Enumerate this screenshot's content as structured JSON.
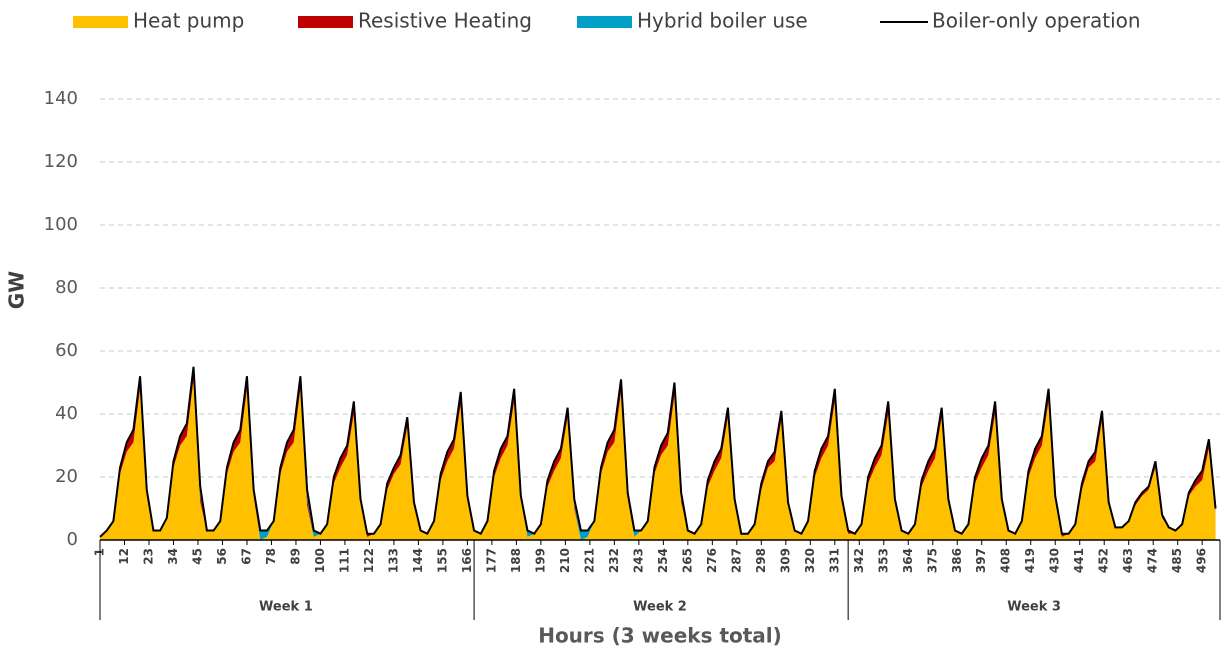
{
  "chart_data": {
    "type": "area",
    "stacked": true,
    "y_label": "GW",
    "x_label": "Hours (3 weeks total)",
    "xlim": [
      1,
      504
    ],
    "ylim": [
      0,
      140
    ],
    "yticks": [
      0,
      20,
      40,
      60,
      80,
      100,
      120,
      140
    ],
    "xticks": [
      1,
      12,
      23,
      34,
      45,
      56,
      67,
      78,
      89,
      100,
      111,
      122,
      133,
      144,
      155,
      166,
      177,
      188,
      199,
      210,
      221,
      232,
      243,
      254,
      265,
      276,
      287,
      298,
      309,
      320,
      331,
      342,
      353,
      364,
      375,
      386,
      397,
      408,
      419,
      430,
      441,
      452,
      463,
      474,
      485,
      496
    ],
    "grid": true,
    "legend": "top",
    "groups": [
      {
        "label": "Week 1",
        "range": [
          1,
          168
        ]
      },
      {
        "label": "Week 2",
        "range": [
          169,
          336
        ]
      },
      {
        "label": "Week 3",
        "range": [
          337,
          504
        ]
      }
    ],
    "x": [
      1,
      4,
      7,
      10,
      13,
      16,
      19,
      22,
      25,
      28,
      31,
      34,
      37,
      40,
      43,
      46,
      49,
      52,
      55,
      58,
      61,
      64,
      67,
      70,
      73,
      76,
      79,
      82,
      85,
      88,
      91,
      94,
      97,
      100,
      103,
      106,
      109,
      112,
      115,
      118,
      121,
      124,
      127,
      130,
      133,
      136,
      139,
      142,
      145,
      148,
      151,
      154,
      157,
      160,
      163,
      166,
      169,
      172,
      175,
      178,
      181,
      184,
      187,
      190,
      193,
      196,
      199,
      202,
      205,
      208,
      211,
      214,
      217,
      220,
      223,
      226,
      229,
      232,
      235,
      238,
      241,
      244,
      247,
      250,
      253,
      256,
      259,
      262,
      265,
      268,
      271,
      274,
      277,
      280,
      283,
      286,
      289,
      292,
      295,
      298,
      301,
      304,
      307,
      310,
      313,
      316,
      319,
      322,
      325,
      328,
      331,
      334,
      337,
      340,
      343,
      346,
      349,
      352,
      355,
      358,
      361,
      364,
      367,
      370,
      373,
      376,
      379,
      382,
      385,
      388,
      391,
      394,
      397,
      400,
      403,
      406,
      409,
      412,
      415,
      418,
      421,
      424,
      427,
      430,
      433,
      436,
      439,
      442,
      445,
      448,
      451,
      454,
      457,
      460,
      463,
      466,
      469,
      472,
      475,
      478,
      481,
      484,
      487,
      490,
      493,
      496,
      499,
      502
    ],
    "series": [
      {
        "name": "Heat pump",
        "color": "#ffc000",
        "mark": "area",
        "values": [
          1,
          3,
          6,
          21,
          28,
          31,
          48,
          14,
          3,
          3,
          7,
          23,
          30,
          33,
          51,
          12,
          3,
          3,
          6,
          21,
          28,
          31,
          48,
          14,
          0,
          1,
          6,
          21,
          28,
          31,
          48,
          11,
          1,
          2,
          5,
          18,
          23,
          27,
          40,
          12,
          1,
          2,
          5,
          16,
          21,
          24,
          36,
          11,
          3,
          2,
          6,
          19,
          25,
          29,
          43,
          13,
          3,
          2,
          6,
          20,
          26,
          30,
          44,
          13,
          1,
          2,
          5,
          17,
          22,
          26,
          39,
          10,
          0,
          1,
          6,
          21,
          28,
          31,
          47,
          13,
          1,
          3,
          6,
          21,
          27,
          30,
          46,
          12,
          3,
          2,
          5,
          17,
          22,
          26,
          39,
          12,
          2,
          2,
          5,
          16,
          23,
          25,
          38,
          11,
          3,
          2,
          6,
          20,
          26,
          30,
          44,
          13,
          2,
          2,
          5,
          18,
          23,
          27,
          40,
          12,
          3,
          2,
          5,
          17,
          22,
          26,
          39,
          12,
          3,
          2,
          5,
          18,
          23,
          27,
          40,
          12,
          3,
          2,
          6,
          20,
          26,
          30,
          44,
          13,
          1,
          2,
          5,
          16,
          23,
          25,
          38,
          11,
          4,
          4,
          6,
          11,
          14,
          16,
          23,
          7,
          4,
          3,
          5,
          14,
          17,
          19,
          29,
          9
        ]
      },
      {
        "name": "Resistive Heating",
        "color": "#c00000",
        "mark": "area",
        "values": [
          0,
          0,
          0,
          2,
          3,
          4,
          4,
          2,
          0,
          0,
          0,
          2,
          3,
          4,
          4,
          2,
          0,
          0,
          0,
          2,
          3,
          4,
          4,
          2,
          0,
          0,
          0,
          2,
          3,
          4,
          4,
          2,
          0,
          0,
          0,
          2,
          3,
          3,
          4,
          1,
          1,
          0,
          0,
          2,
          2,
          3,
          3,
          1,
          0,
          0,
          0,
          2,
          3,
          3,
          4,
          1,
          0,
          0,
          0,
          2,
          3,
          3,
          4,
          1,
          0,
          0,
          0,
          2,
          3,
          3,
          3,
          1,
          0,
          0,
          0,
          2,
          3,
          4,
          4,
          2,
          0,
          0,
          0,
          2,
          3,
          4,
          4,
          1,
          0,
          0,
          0,
          2,
          3,
          3,
          3,
          1,
          0,
          0,
          0,
          2,
          2,
          3,
          3,
          1,
          0,
          0,
          0,
          2,
          3,
          3,
          4,
          1,
          1,
          0,
          0,
          2,
          3,
          3,
          4,
          1,
          0,
          0,
          0,
          2,
          3,
          3,
          3,
          1,
          0,
          0,
          0,
          2,
          3,
          3,
          4,
          1,
          0,
          0,
          0,
          2,
          3,
          3,
          4,
          1,
          1,
          0,
          0,
          2,
          2,
          3,
          3,
          1,
          0,
          0,
          0,
          1,
          1,
          1,
          2,
          1,
          0,
          0,
          0,
          1,
          2,
          3,
          3,
          1
        ]
      },
      {
        "name": "Hybrid boiler use",
        "color": "#00a0c6",
        "mark": "area",
        "values": [
          0,
          0,
          0,
          0,
          0,
          0,
          0,
          0,
          0,
          0,
          0,
          0,
          0,
          0,
          0,
          3,
          0,
          0,
          0,
          0,
          0,
          0,
          0,
          0,
          3,
          2,
          0,
          0,
          0,
          0,
          0,
          3,
          2,
          0,
          0,
          0,
          0,
          0,
          0,
          0,
          0,
          0,
          0,
          0,
          0,
          0,
          0,
          0,
          0,
          0,
          0,
          0,
          0,
          0,
          0,
          0,
          0,
          0,
          0,
          0,
          0,
          0,
          0,
          0,
          2,
          0,
          0,
          0,
          0,
          0,
          0,
          2,
          3,
          2,
          0,
          0,
          0,
          0,
          0,
          0,
          2,
          0,
          0,
          0,
          0,
          0,
          0,
          2,
          0,
          0,
          0,
          0,
          0,
          0,
          0,
          0,
          0,
          0,
          0,
          0,
          0,
          0,
          0,
          0,
          0,
          0,
          0,
          0,
          0,
          0,
          0,
          0,
          0,
          0,
          0,
          0,
          0,
          0,
          0,
          0,
          0,
          0,
          0,
          0,
          0,
          0,
          0,
          0,
          0,
          0,
          0,
          0,
          0,
          0,
          0,
          0,
          0,
          0,
          0,
          0,
          0,
          0,
          0,
          0,
          0,
          0,
          0,
          0,
          0,
          0,
          0,
          0,
          0,
          0,
          0,
          0,
          0,
          0,
          0,
          0,
          0,
          0,
          0,
          0,
          0,
          0,
          0,
          0
        ]
      },
      {
        "name": "Boiler-only operation",
        "color": "#000000",
        "mark": "line",
        "values": [
          1,
          3,
          6,
          23,
          31,
          35,
          52,
          16,
          3,
          3,
          7,
          25,
          33,
          37,
          55,
          17,
          3,
          3,
          6,
          23,
          31,
          35,
          52,
          16,
          3,
          3,
          6,
          23,
          31,
          35,
          52,
          16,
          3,
          2,
          5,
          20,
          26,
          30,
          44,
          13,
          2,
          2,
          5,
          18,
          23,
          27,
          39,
          12,
          3,
          2,
          6,
          21,
          28,
          32,
          47,
          14,
          3,
          2,
          6,
          22,
          29,
          33,
          48,
          14,
          3,
          2,
          5,
          19,
          25,
          29,
          42,
          13,
          3,
          3,
          6,
          23,
          31,
          35,
          51,
          15,
          3,
          3,
          6,
          23,
          30,
          34,
          50,
          15,
          3,
          2,
          5,
          19,
          25,
          29,
          42,
          13,
          2,
          2,
          5,
          18,
          25,
          28,
          41,
          12,
          3,
          2,
          6,
          22,
          29,
          33,
          48,
          14,
          3,
          2,
          5,
          20,
          26,
          30,
          44,
          13,
          3,
          2,
          5,
          19,
          25,
          29,
          42,
          13,
          3,
          2,
          5,
          20,
          26,
          30,
          44,
          13,
          3,
          2,
          6,
          22,
          29,
          33,
          48,
          14,
          2,
          2,
          5,
          18,
          25,
          28,
          41,
          12,
          4,
          4,
          6,
          12,
          15,
          17,
          25,
          8,
          4,
          3,
          5,
          15,
          19,
          22,
          32,
          10
        ]
      }
    ]
  }
}
